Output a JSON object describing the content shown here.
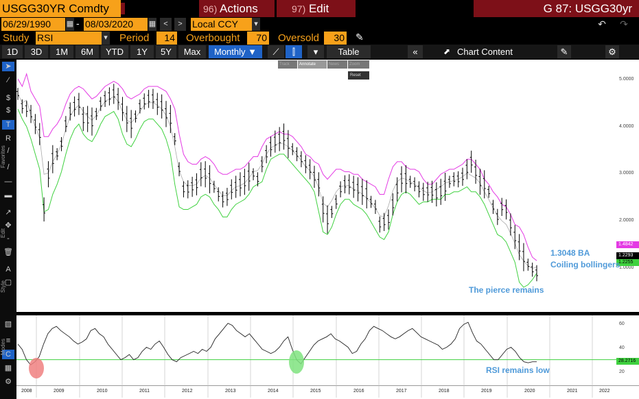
{
  "header": {
    "ticker": "USGG30YR Comdty",
    "actions_num": "96)",
    "actions_label": "Actions",
    "edit_num": "97)",
    "edit_label": "Edit",
    "title": "G 87: USGG30yr"
  },
  "dates": {
    "start": "06/29/1990",
    "sep": "-",
    "end": "08/03/2020",
    "currency": "Local CCY"
  },
  "study": {
    "label": "Study",
    "value": "RSI",
    "period_label": "Period",
    "period": "14",
    "overbought_label": "Overbought",
    "overbought": "70",
    "oversold_label": "Oversold",
    "oversold": "30"
  },
  "tabs": [
    "1D",
    "3D",
    "1M",
    "6M",
    "YTD",
    "1Y",
    "5Y",
    "Max"
  ],
  "frequency": "Monthly ▼",
  "table_label": "Table",
  "chart_content_label": "Chart Content",
  "toolbar": {
    "track": "Track",
    "annotate": "Annotate",
    "news": "News",
    "zoom": "Zoom",
    "reset": "Reset"
  },
  "side_labels": {
    "favorites": "Favorites",
    "edit": "Edit",
    "style": "Style",
    "modes": "Modes"
  },
  "annotations": {
    "ba": "1.3048  BA",
    "coil": "Coiling bollingers",
    "pierce": "The pierce remains",
    "rsi_low": "RSI remains low"
  },
  "tags": {
    "upper": "1.4842",
    "last": "1.2293",
    "lower": "1.2255",
    "rsi": "28.2716"
  },
  "chart_data": [
    {
      "type": "line",
      "series": [
        {
          "values": [
            4.8,
            4.55,
            4.5,
            4.4,
            4.2,
            4.0,
            2.5,
            3.2,
            3.5,
            3.6,
            3.8,
            4.2,
            4.45,
            4.55,
            4.6,
            4.3,
            4.3,
            4.25,
            4.4,
            4.6,
            4.7,
            4.75,
            4.8,
            4.7,
            4.5,
            4.3,
            4.2,
            4.35,
            4.55,
            4.65,
            4.7,
            4.7,
            4.6,
            4.55,
            4.4,
            4.3,
            3.9,
            3.3,
            2.9,
            2.9,
            2.95,
            3.0,
            3.2,
            3.2,
            3.1,
            2.95,
            2.8,
            2.7,
            2.75,
            2.9,
            2.95,
            3.0,
            3.05,
            3.15,
            3.2,
            3.1,
            3.4,
            3.6,
            3.75,
            3.85,
            3.9,
            3.95,
            3.8,
            3.7,
            3.6,
            3.5,
            3.4,
            3.3,
            3.15,
            3.0,
            2.5,
            2.3,
            2.45,
            2.65,
            2.9,
            3.0,
            3.0,
            2.95,
            2.9,
            2.85,
            2.8,
            2.65,
            2.55,
            2.2,
            2.25,
            2.3,
            2.6,
            2.9,
            3.1,
            3.1,
            3.05,
            3.0,
            2.9,
            2.85,
            2.85,
            2.85,
            2.8,
            2.85,
            2.95,
            3.05,
            3.1,
            3.1,
            3.15,
            3.3,
            3.45,
            3.25,
            3.05,
            3.0,
            2.85,
            2.55,
            2.35,
            2.55,
            2.5,
            2.2,
            1.95,
            1.75,
            1.55,
            1.4,
            1.3,
            1.23
          ]
        },
        {
          "values": [
            5.1,
            4.95,
            5.2,
            4.85,
            4.7,
            4.55,
            3.95,
            3.95,
            4.1,
            4.2,
            4.35,
            4.6,
            4.8,
            4.9,
            4.95,
            4.9,
            4.8,
            4.7,
            4.75,
            4.85,
            4.95,
            5.0,
            5.05,
            5.0,
            4.9,
            4.75,
            4.7,
            4.75,
            4.8,
            4.9,
            4.95,
            4.95,
            4.95,
            4.9,
            4.85,
            4.7,
            4.5,
            4.0,
            3.6,
            3.45,
            3.4,
            3.4,
            3.5,
            3.55,
            3.5,
            3.4,
            3.25,
            3.2,
            3.2,
            3.25,
            3.3,
            3.3,
            3.35,
            3.45,
            3.55,
            3.55,
            3.75,
            3.9,
            3.95,
            4.0,
            4.05,
            4.0,
            4.0,
            3.95,
            3.85,
            3.75,
            3.6,
            3.55,
            3.45,
            3.4,
            3.2,
            3.1,
            3.2,
            3.3,
            3.3,
            3.25,
            3.25,
            3.2,
            3.2,
            3.1,
            3.05,
            3.0,
            2.95,
            2.8,
            2.8,
            3.1,
            3.35,
            3.45,
            3.45,
            3.35,
            3.3,
            3.3,
            3.25,
            3.1,
            3.0,
            3.0,
            3.1,
            3.2,
            3.25,
            3.3,
            3.3,
            3.35,
            3.4,
            3.5,
            3.5,
            3.4,
            3.3,
            3.1,
            3.0,
            2.85,
            2.75,
            2.6,
            2.55,
            2.4,
            2.2,
            2.15,
            2.0,
            1.75,
            1.55,
            1.48
          ]
        },
        {
          "values": [
            4.5,
            4.3,
            4.15,
            3.9,
            3.6,
            3.3,
            2.45,
            2.5,
            2.8,
            3.0,
            3.25,
            3.6,
            3.9,
            4.1,
            4.2,
            4.0,
            3.9,
            3.85,
            4.0,
            4.2,
            4.35,
            4.4,
            4.45,
            4.3,
            4.0,
            3.8,
            3.75,
            3.9,
            4.1,
            4.25,
            4.3,
            4.3,
            4.2,
            4.1,
            3.9,
            3.6,
            3.0,
            2.55,
            2.5,
            2.5,
            2.55,
            2.6,
            2.75,
            2.8,
            2.75,
            2.6,
            2.5,
            2.35,
            2.35,
            2.5,
            2.6,
            2.65,
            2.7,
            2.8,
            2.95,
            3.0,
            3.05,
            3.3,
            3.5,
            3.55,
            3.6,
            3.6,
            3.5,
            3.4,
            3.3,
            3.2,
            3.1,
            3.0,
            2.85,
            2.45,
            2.05,
            2.0,
            2.15,
            2.4,
            2.6,
            2.7,
            2.7,
            2.6,
            2.55,
            2.5,
            2.4,
            2.25,
            2.1,
            1.95,
            1.9,
            2.05,
            2.4,
            2.65,
            2.8,
            2.85,
            2.8,
            2.7,
            2.6,
            2.65,
            2.65,
            2.7,
            2.7,
            2.7,
            2.8,
            2.8,
            2.85,
            2.85,
            2.9,
            2.95,
            2.85,
            2.85,
            2.75,
            2.6,
            2.4,
            2.2,
            2.0,
            1.95,
            1.85,
            1.65,
            1.45,
            1.05,
            0.95,
            1.0,
            1.1,
            1.23
          ]
        }
      ],
      "yrange": [
        0.5,
        5.4
      ]
    },
    {
      "type": "line",
      "series": [
        {
          "values": [
            45,
            40,
            30,
            25,
            28,
            33,
            45,
            55,
            60,
            62,
            58,
            55,
            52,
            48,
            45,
            47,
            50,
            58,
            60,
            55,
            52,
            45,
            40,
            35,
            30,
            32,
            35,
            30,
            32,
            38,
            42,
            40,
            45,
            48,
            42,
            35,
            30,
            28,
            32,
            34,
            36,
            38,
            36,
            40,
            38,
            42,
            50,
            55,
            60,
            65,
            63,
            58,
            55,
            52,
            55,
            50,
            45,
            40,
            38,
            36,
            38,
            42,
            48,
            52,
            40,
            30,
            26,
            32,
            38,
            44,
            48,
            50,
            52,
            55,
            50,
            48,
            45,
            42,
            36,
            38,
            45,
            50,
            58,
            62,
            60,
            58,
            55,
            52,
            50,
            52,
            55,
            58,
            60,
            56,
            52,
            50,
            48,
            46,
            44,
            40,
            42,
            45,
            50,
            60,
            64,
            66,
            56,
            48,
            45,
            40,
            35,
            30,
            30,
            35,
            40,
            42,
            38,
            32,
            28,
            27,
            28,
            28
          ]
        }
      ],
      "yrange": [
        10,
        70
      ],
      "ref": 30
    },
    {
      "type": "table",
      "x_ticks": [
        "2008",
        "2009",
        "2010",
        "2011",
        "2012",
        "2013",
        "2014",
        "2015",
        "2016",
        "2017",
        "2018",
        "2019",
        "2020",
        "2021",
        "2022"
      ],
      "y_ticks_price": [
        "5.0000",
        "4.0000",
        "3.0000",
        "2.0000",
        "1.0000"
      ],
      "y_ticks_rsi": [
        "60",
        "40",
        "20"
      ]
    }
  ]
}
